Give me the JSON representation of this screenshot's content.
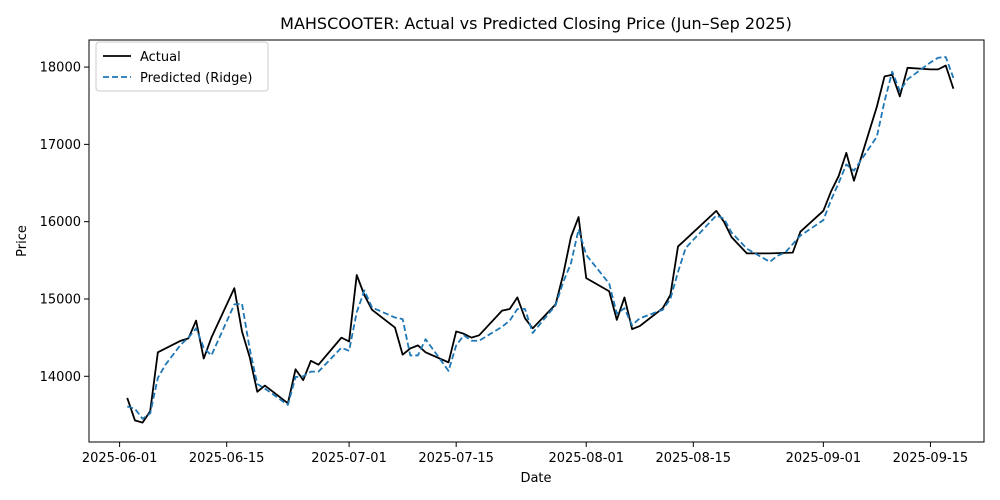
{
  "chart_data": {
    "type": "line",
    "title": "MAHSCOOTER: Actual vs Predicted Closing Price (Jun–Sep 2025)",
    "xlabel": "Date",
    "ylabel": "Price",
    "xlim": [
      "2025-05-28",
      "2025-09-22"
    ],
    "ylim": [
      13150,
      18350
    ],
    "x_ticks": [
      "2025-06-01",
      "2025-06-15",
      "2025-07-01",
      "2025-07-15",
      "2025-08-01",
      "2025-08-15",
      "2025-09-01",
      "2025-09-15"
    ],
    "y_ticks": [
      14000,
      15000,
      16000,
      17000,
      18000
    ],
    "legend_position": "upper-left",
    "grid": false,
    "series": [
      {
        "name": "Actual",
        "color": "#000000",
        "style": "solid",
        "points": [
          [
            "2025-06-02",
            13720
          ],
          [
            "2025-06-03",
            13430
          ],
          [
            "2025-06-04",
            13400
          ],
          [
            "2025-06-05",
            13550
          ],
          [
            "2025-06-06",
            14310
          ],
          [
            "2025-06-09",
            14460
          ],
          [
            "2025-06-10",
            14490
          ],
          [
            "2025-06-11",
            14720
          ],
          [
            "2025-06-12",
            14230
          ],
          [
            "2025-06-13",
            14500
          ],
          [
            "2025-06-16",
            15140
          ],
          [
            "2025-06-17",
            14580
          ],
          [
            "2025-06-18",
            14250
          ],
          [
            "2025-06-19",
            13800
          ],
          [
            "2025-06-20",
            13880
          ],
          [
            "2025-06-23",
            13650
          ],
          [
            "2025-06-24",
            14090
          ],
          [
            "2025-06-25",
            13950
          ],
          [
            "2025-06-26",
            14200
          ],
          [
            "2025-06-27",
            14150
          ],
          [
            "2025-06-30",
            14500
          ],
          [
            "2025-07-01",
            14450
          ],
          [
            "2025-07-02",
            15310
          ],
          [
            "2025-07-03",
            15050
          ],
          [
            "2025-07-04",
            14860
          ],
          [
            "2025-07-07",
            14630
          ],
          [
            "2025-07-08",
            14280
          ],
          [
            "2025-07-09",
            14360
          ],
          [
            "2025-07-10",
            14400
          ],
          [
            "2025-07-11",
            14310
          ],
          [
            "2025-07-14",
            14180
          ],
          [
            "2025-07-15",
            14580
          ],
          [
            "2025-07-16",
            14550
          ],
          [
            "2025-07-17",
            14500
          ],
          [
            "2025-07-18",
            14530
          ],
          [
            "2025-07-21",
            14850
          ],
          [
            "2025-07-22",
            14870
          ],
          [
            "2025-07-23",
            15020
          ],
          [
            "2025-07-24",
            14750
          ],
          [
            "2025-07-25",
            14620
          ],
          [
            "2025-07-28",
            14930
          ],
          [
            "2025-07-29",
            15320
          ],
          [
            "2025-07-30",
            15800
          ],
          [
            "2025-07-31",
            16060
          ],
          [
            "2025-08-01",
            15270
          ],
          [
            "2025-08-04",
            15100
          ],
          [
            "2025-08-05",
            14730
          ],
          [
            "2025-08-06",
            15020
          ],
          [
            "2025-08-07",
            14610
          ],
          [
            "2025-08-08",
            14650
          ],
          [
            "2025-08-11",
            14880
          ],
          [
            "2025-08-12",
            15050
          ],
          [
            "2025-08-13",
            15680
          ],
          [
            "2025-08-14",
            15770
          ],
          [
            "2025-08-18",
            16140
          ],
          [
            "2025-08-19",
            16000
          ],
          [
            "2025-08-20",
            15800
          ],
          [
            "2025-08-22",
            15590
          ],
          [
            "2025-08-25",
            15590
          ],
          [
            "2025-08-28",
            15600
          ],
          [
            "2025-08-29",
            15870
          ],
          [
            "2025-09-01",
            16140
          ],
          [
            "2025-09-02",
            16390
          ],
          [
            "2025-09-03",
            16590
          ],
          [
            "2025-09-04",
            16890
          ],
          [
            "2025-09-05",
            16530
          ],
          [
            "2025-09-08",
            17490
          ],
          [
            "2025-09-09",
            17880
          ],
          [
            "2025-09-10",
            17900
          ],
          [
            "2025-09-11",
            17620
          ],
          [
            "2025-09-12",
            17990
          ],
          [
            "2025-09-15",
            17970
          ],
          [
            "2025-09-16",
            17970
          ],
          [
            "2025-09-17",
            18020
          ],
          [
            "2025-09-18",
            17720
          ]
        ]
      },
      {
        "name": "Predicted (Ridge)",
        "color": "#1f77b4",
        "style": "dashed",
        "points": [
          [
            "2025-06-02",
            13610
          ],
          [
            "2025-06-03",
            13580
          ],
          [
            "2025-06-04",
            13450
          ],
          [
            "2025-06-05",
            13520
          ],
          [
            "2025-06-06",
            13980
          ],
          [
            "2025-06-07",
            14150
          ],
          [
            "2025-06-09",
            14410
          ],
          [
            "2025-06-10",
            14500
          ],
          [
            "2025-06-11",
            14620
          ],
          [
            "2025-06-12",
            14370
          ],
          [
            "2025-06-13",
            14270
          ],
          [
            "2025-06-16",
            14930
          ],
          [
            "2025-06-17",
            14940
          ],
          [
            "2025-06-18",
            14360
          ],
          [
            "2025-06-19",
            13900
          ],
          [
            "2025-06-20",
            13840
          ],
          [
            "2025-06-23",
            13630
          ],
          [
            "2025-06-24",
            13990
          ],
          [
            "2025-06-25",
            14000
          ],
          [
            "2025-06-26",
            14060
          ],
          [
            "2025-06-27",
            14060
          ],
          [
            "2025-06-30",
            14370
          ],
          [
            "2025-07-01",
            14330
          ],
          [
            "2025-07-02",
            14830
          ],
          [
            "2025-07-03",
            15110
          ],
          [
            "2025-07-04",
            14890
          ],
          [
            "2025-07-07",
            14760
          ],
          [
            "2025-07-08",
            14740
          ],
          [
            "2025-07-09",
            14270
          ],
          [
            "2025-07-10",
            14270
          ],
          [
            "2025-07-11",
            14480
          ],
          [
            "2025-07-14",
            14070
          ],
          [
            "2025-07-15",
            14400
          ],
          [
            "2025-07-16",
            14530
          ],
          [
            "2025-07-17",
            14460
          ],
          [
            "2025-07-18",
            14460
          ],
          [
            "2025-07-21",
            14640
          ],
          [
            "2025-07-22",
            14720
          ],
          [
            "2025-07-23",
            14870
          ],
          [
            "2025-07-24",
            14870
          ],
          [
            "2025-07-25",
            14560
          ],
          [
            "2025-07-28",
            14920
          ],
          [
            "2025-07-29",
            15220
          ],
          [
            "2025-07-30",
            15460
          ],
          [
            "2025-07-31",
            15900
          ],
          [
            "2025-08-01",
            15570
          ],
          [
            "2025-08-04",
            15200
          ],
          [
            "2025-08-05",
            14810
          ],
          [
            "2025-08-06",
            14880
          ],
          [
            "2025-08-07",
            14660
          ],
          [
            "2025-08-08",
            14750
          ],
          [
            "2025-08-11",
            14860
          ],
          [
            "2025-08-12",
            15000
          ],
          [
            "2025-08-13",
            15350
          ],
          [
            "2025-08-14",
            15660
          ],
          [
            "2025-08-18",
            16080
          ],
          [
            "2025-08-19",
            16040
          ],
          [
            "2025-08-20",
            15860
          ],
          [
            "2025-08-22",
            15650
          ],
          [
            "2025-08-25",
            15480
          ],
          [
            "2025-08-26",
            15560
          ],
          [
            "2025-08-27",
            15600
          ],
          [
            "2025-08-29",
            15820
          ],
          [
            "2025-09-01",
            16020
          ],
          [
            "2025-09-02",
            16280
          ],
          [
            "2025-09-03",
            16500
          ],
          [
            "2025-09-04",
            16740
          ],
          [
            "2025-09-05",
            16660
          ],
          [
            "2025-09-08",
            17100
          ],
          [
            "2025-09-09",
            17560
          ],
          [
            "2025-09-10",
            17940
          ],
          [
            "2025-09-11",
            17690
          ],
          [
            "2025-09-12",
            17840
          ],
          [
            "2025-09-15",
            18060
          ],
          [
            "2025-09-16",
            18120
          ],
          [
            "2025-09-17",
            18130
          ],
          [
            "2025-09-18",
            17860
          ]
        ]
      }
    ]
  }
}
